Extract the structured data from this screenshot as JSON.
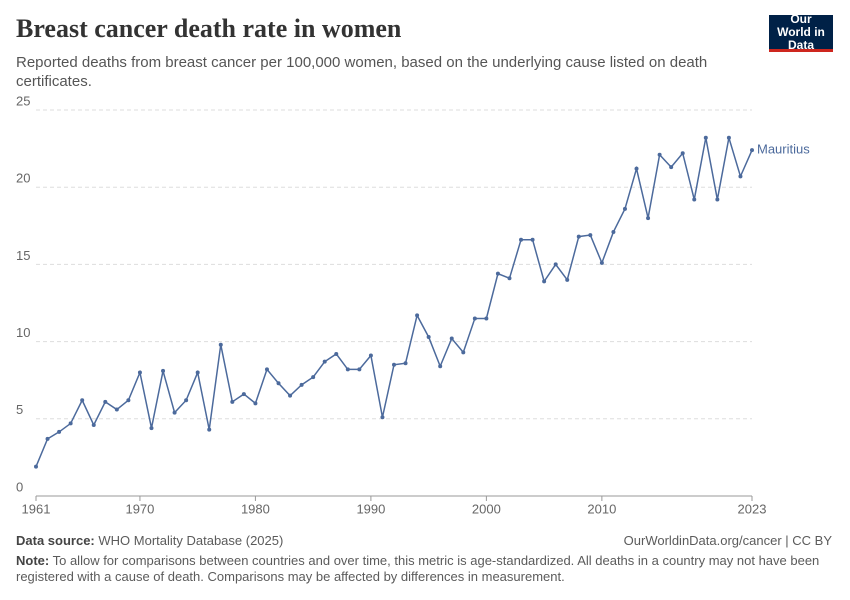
{
  "chart_data": {
    "type": "line",
    "title": "Breast cancer death rate in women",
    "subtitle": "Reported deaths from breast cancer per 100,000 women, based on the underlying cause listed on death certificates.",
    "logo": "Our World in Data",
    "source_label": "Data source:",
    "source": "WHO Mortality Database (2025)",
    "url": "OurWorldinData.org/cancer | CC BY",
    "note_label": "Note:",
    "note": "To allow for comparisons between countries and over time, this metric is age-standardized. All deaths in a country may not have been registered with a cause of death. Comparisons may be affected by differences in measurement.",
    "x": [
      1961,
      1962,
      1963,
      1964,
      1965,
      1966,
      1967,
      1968,
      1969,
      1970,
      1971,
      1972,
      1973,
      1974,
      1975,
      1976,
      1977,
      1978,
      1979,
      1980,
      1981,
      1982,
      1983,
      1984,
      1985,
      1986,
      1987,
      1988,
      1989,
      1990,
      1991,
      1992,
      1993,
      1994,
      1995,
      1996,
      1997,
      1998,
      1999,
      2000,
      2001,
      2002,
      2003,
      2004,
      2005,
      2006,
      2007,
      2008,
      2009,
      2010,
      2011,
      2012,
      2013,
      2014,
      2015,
      2016,
      2017,
      2018,
      2019,
      2020,
      2021,
      2022,
      2023
    ],
    "series": [
      {
        "name": "Mauritius",
        "color": "#4c6a9c",
        "values": [
          1.9,
          3.7,
          4.15,
          4.7,
          6.2,
          4.6,
          6.1,
          5.6,
          6.2,
          8.0,
          4.4,
          8.1,
          5.4,
          6.2,
          8.0,
          4.3,
          9.8,
          6.1,
          6.6,
          6.0,
          8.2,
          7.3,
          6.5,
          7.2,
          7.7,
          8.7,
          9.2,
          8.2,
          8.2,
          9.1,
          5.1,
          8.5,
          8.6,
          11.7,
          10.3,
          8.4,
          10.2,
          9.3,
          11.5,
          11.5,
          14.4,
          14.1,
          16.6,
          16.6,
          13.9,
          15.0,
          14.0,
          16.8,
          16.9,
          15.1,
          17.1,
          18.6,
          21.2,
          18.0,
          22.1,
          21.3,
          22.2,
          19.2,
          23.2,
          19.2,
          23.2,
          20.7,
          22.4
        ]
      }
    ],
    "xlim": [
      1961,
      2023
    ],
    "xticks": [
      1961,
      1970,
      1980,
      1990,
      2000,
      2010,
      2023
    ],
    "ylim": [
      0,
      25
    ],
    "yticks": [
      0,
      5,
      10,
      15,
      20,
      25
    ],
    "grid": true
  }
}
